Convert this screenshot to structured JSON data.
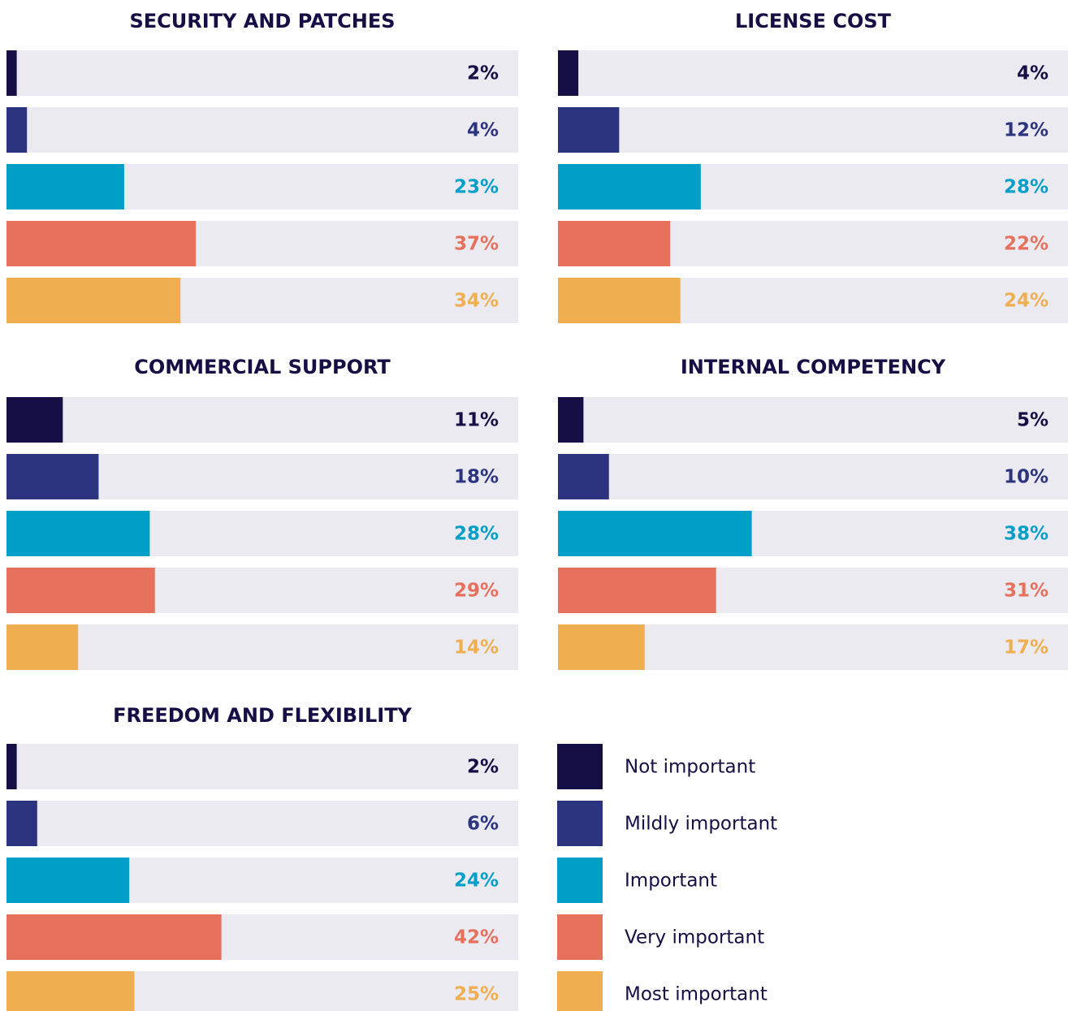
{
  "legend": {
    "labels": [
      "Not important",
      "Mildly important",
      "Important",
      "Very important",
      "Most important"
    ],
    "colors": [
      "#160f45",
      "#2c3480",
      "#009fc7",
      "#e5705c",
      "#efae50"
    ]
  },
  "chart_data": [
    {
      "type": "bar",
      "title": "SECURITY AND PATCHES",
      "values": [
        2,
        4,
        23,
        37,
        34
      ],
      "value_labels": [
        "2%",
        "4%",
        "23%",
        "37%",
        "34%"
      ],
      "xlim": [
        0,
        100
      ]
    },
    {
      "type": "bar",
      "title": "LICENSE COST",
      "values": [
        4,
        12,
        28,
        22,
        24
      ],
      "value_labels": [
        "4%",
        "12%",
        "28%",
        "22%",
        "24%"
      ],
      "xlim": [
        0,
        100
      ]
    },
    {
      "type": "bar",
      "title": "COMMERCIAL SUPPORT",
      "values": [
        11,
        18,
        28,
        29,
        14
      ],
      "value_labels": [
        "11%",
        "18%",
        "28%",
        "29%",
        "14%"
      ],
      "xlim": [
        0,
        100
      ]
    },
    {
      "type": "bar",
      "title": "INTERNAL COMPETENCY",
      "values": [
        5,
        10,
        38,
        31,
        17
      ],
      "value_labels": [
        "5%",
        "10%",
        "38%",
        "31%",
        "17%"
      ],
      "xlim": [
        0,
        100
      ]
    },
    {
      "type": "bar",
      "title": "FREEDOM AND FLEXIBILITY",
      "values": [
        2,
        6,
        24,
        42,
        25
      ],
      "value_labels": [
        "2%",
        "6%",
        "24%",
        "42%",
        "25%"
      ],
      "xlim": [
        0,
        100
      ]
    }
  ]
}
